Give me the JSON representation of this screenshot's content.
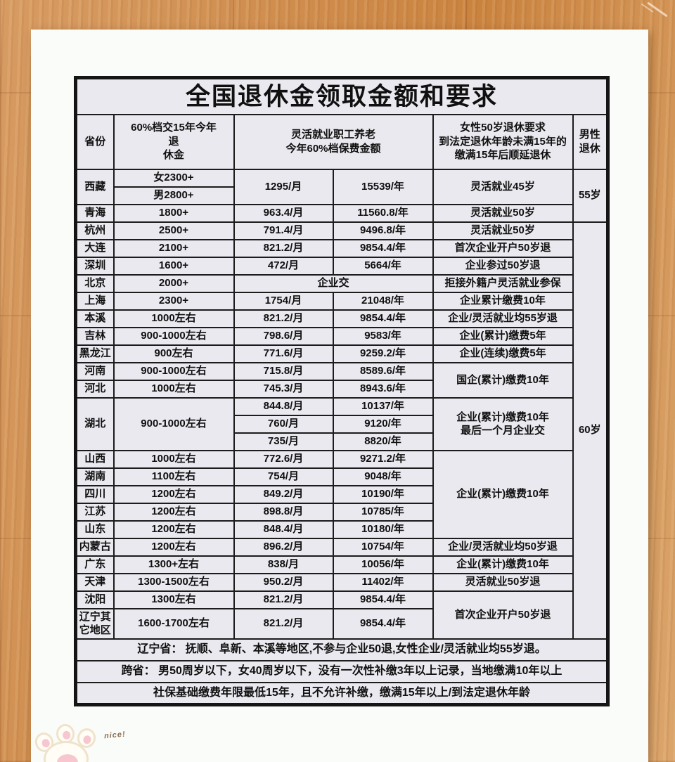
{
  "table": {
    "title": "全国退休金领取金额和要求",
    "headers": {
      "province": "省份",
      "pension": "60%档交15年今年\n退\n休金",
      "flexible": "灵活就业职工养老\n今年60%档保费金额",
      "female": "女性50岁退休要求\n到法定退休年龄未满15年的\n缴满15年后顺延退休",
      "male": "男性退休"
    },
    "body": [
      [
        {
          "t": "西藏",
          "rs": 2
        },
        {
          "t": "女2300+"
        },
        {
          "t": "1295/月",
          "rs": 2
        },
        {
          "t": "15539/年",
          "rs": 2
        },
        {
          "t": "灵活就业45岁",
          "rs": 2
        },
        {
          "t": "55岁",
          "rs": 3
        }
      ],
      [
        {
          "t": "男2800+"
        }
      ],
      [
        {
          "t": "青海"
        },
        {
          "t": "1800+"
        },
        {
          "t": "963.4/月"
        },
        {
          "t": "11560.8/年"
        },
        {
          "t": "灵活就业50岁"
        }
      ],
      [
        {
          "t": "杭州"
        },
        {
          "t": "2500+"
        },
        {
          "t": "791.4/月"
        },
        {
          "t": "9496.8/年"
        },
        {
          "t": "灵活就业50岁"
        },
        {
          "t": "60岁",
          "rs": 23
        }
      ],
      [
        {
          "t": "大连"
        },
        {
          "t": "2100+"
        },
        {
          "t": "821.2/月"
        },
        {
          "t": "9854.4/年"
        },
        {
          "t": "首次企业开户50岁退"
        }
      ],
      [
        {
          "t": "深圳"
        },
        {
          "t": "1600+"
        },
        {
          "t": "472/月"
        },
        {
          "t": "5664/年"
        },
        {
          "t": "企业参过50岁退"
        }
      ],
      [
        {
          "t": "北京"
        },
        {
          "t": "2000+"
        },
        {
          "t": "企业交",
          "cs": 2
        },
        {
          "t": "拒接外籍户灵活就业参保"
        }
      ],
      [
        {
          "t": "上海"
        },
        {
          "t": "2300+"
        },
        {
          "t": "1754/月"
        },
        {
          "t": "21048/年"
        },
        {
          "t": "企业累计缴费10年"
        }
      ],
      [
        {
          "t": "本溪"
        },
        {
          "t": "1000左右"
        },
        {
          "t": "821.2/月"
        },
        {
          "t": "9854.4/年"
        },
        {
          "t": "企业/灵活就业均55岁退"
        }
      ],
      [
        {
          "t": "吉林"
        },
        {
          "t": "900-1000左右"
        },
        {
          "t": "798.6/月"
        },
        {
          "t": "9583/年"
        },
        {
          "t": "企业(累计)缴费5年"
        }
      ],
      [
        {
          "t": "黑龙江"
        },
        {
          "t": "900左右"
        },
        {
          "t": "771.6/月"
        },
        {
          "t": "9259.2/年"
        },
        {
          "t": "企业(连续)缴费5年"
        }
      ],
      [
        {
          "t": "河南"
        },
        {
          "t": "900-1000左右"
        },
        {
          "t": "715.8/月"
        },
        {
          "t": "8589.6/年"
        },
        {
          "t": "国企(累计)缴费10年",
          "rs": 2
        }
      ],
      [
        {
          "t": "河北"
        },
        {
          "t": "1000左右"
        },
        {
          "t": "745.3/月"
        },
        {
          "t": "8943.6/年"
        }
      ],
      [
        {
          "t": "湖北",
          "rs": 3
        },
        {
          "t": "900-1000左右",
          "rs": 3
        },
        {
          "t": "844.8/月"
        },
        {
          "t": "10137/年"
        },
        {
          "t": "企业(累计)缴费10年\n最后一个月企业交",
          "rs": 3
        }
      ],
      [
        {
          "t": "760/月"
        },
        {
          "t": "9120/年"
        }
      ],
      [
        {
          "t": "735/月"
        },
        {
          "t": "8820/年"
        }
      ],
      [
        {
          "t": "山西"
        },
        {
          "t": "1000左右"
        },
        {
          "t": "772.6/月"
        },
        {
          "t": "9271.2/年"
        },
        {
          "t": "企业(累计)缴费10年",
          "rs": 5
        }
      ],
      [
        {
          "t": "湖南"
        },
        {
          "t": "1100左右"
        },
        {
          "t": "754/月"
        },
        {
          "t": "9048/年"
        }
      ],
      [
        {
          "t": "四川"
        },
        {
          "t": "1200左右"
        },
        {
          "t": "849.2/月"
        },
        {
          "t": "10190/年"
        }
      ],
      [
        {
          "t": "江苏"
        },
        {
          "t": "1200左右"
        },
        {
          "t": "898.8/月"
        },
        {
          "t": "10785/年"
        }
      ],
      [
        {
          "t": "山东"
        },
        {
          "t": "1200左右"
        },
        {
          "t": "848.4/月"
        },
        {
          "t": "10180/年"
        }
      ],
      [
        {
          "t": "内蒙古"
        },
        {
          "t": "1200左右"
        },
        {
          "t": "896.2/月"
        },
        {
          "t": "10754/年"
        },
        {
          "t": "企业/灵活就业均50岁退"
        }
      ],
      [
        {
          "t": "广东"
        },
        {
          "t": "1300+左右"
        },
        {
          "t": "838/月"
        },
        {
          "t": "10056/年"
        },
        {
          "t": "企业(累计)缴费10年"
        }
      ],
      [
        {
          "t": "天津"
        },
        {
          "t": "1300-1500左右"
        },
        {
          "t": "950.2/月"
        },
        {
          "t": "11402/年"
        },
        {
          "t": "灵活就业50岁退"
        }
      ],
      [
        {
          "t": "沈阳"
        },
        {
          "t": "1300左右"
        },
        {
          "t": "821.2/月"
        },
        {
          "t": "9854.4/年"
        },
        {
          "t": "首次企业开户50岁退",
          "rs": 2
        }
      ],
      [
        {
          "t": "辽宁其它地区"
        },
        {
          "t": "1600-1700左右"
        },
        {
          "t": "821.2/月"
        },
        {
          "t": "9854.4/年"
        }
      ]
    ],
    "notes": [
      "辽宁省： 抚顺、阜新、本溪等地区,不参与企业50退,女性企业/灵活就业均55岁退。",
      "跨省： 男50周岁以下，女40周岁以下，没有一次性补缴3年以上记录，当地缴满10年以上",
      "社保基础缴费年限最低15年，且不允许补缴，缴满15年以上/到法定退休年龄"
    ]
  },
  "decoration": {
    "bunny_text": "nice!"
  },
  "colors": {
    "wood": "#cd8a50",
    "page": "#fafcf9",
    "cell_background": "#e9e9ef",
    "border": "#1c1c1c"
  }
}
